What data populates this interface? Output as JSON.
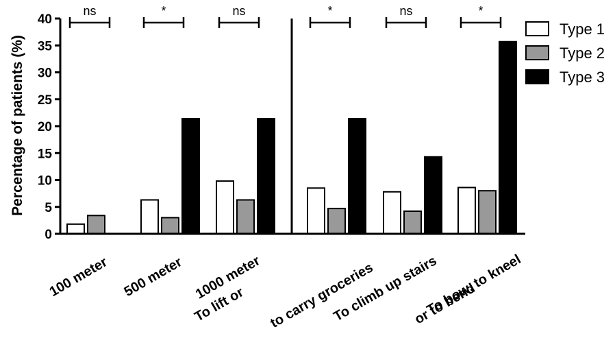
{
  "chart_data": {
    "type": "bar",
    "ylabel": "Percentage of patients (%)",
    "xlabel": "",
    "ylim": [
      0,
      40
    ],
    "yticks": [
      0,
      5,
      10,
      15,
      20,
      25,
      30,
      35,
      40
    ],
    "categories": [
      [
        "100 meter"
      ],
      [
        "500 meter"
      ],
      [
        "1000 meter"
      ],
      [
        "To lift or",
        "to carry groceries"
      ],
      [
        "To climb up stairs"
      ],
      [
        "To bow, to kneel",
        "or to bend"
      ]
    ],
    "series": [
      {
        "name": "Type 1",
        "color": "#ffffff",
        "values": [
          1.8,
          6.3,
          9.8,
          8.5,
          7.8,
          8.6
        ]
      },
      {
        "name": "Type 2",
        "color": "#999999",
        "values": [
          3.4,
          3.0,
          6.3,
          4.7,
          4.2,
          8.0
        ]
      },
      {
        "name": "Type 3",
        "color": "#000000",
        "values": [
          0,
          21.4,
          21.4,
          21.4,
          14.3,
          35.7
        ]
      }
    ],
    "significance": [
      "ns",
      "*",
      "ns",
      "*",
      "ns",
      "*"
    ],
    "legend_position": "top-right",
    "grid": false
  }
}
